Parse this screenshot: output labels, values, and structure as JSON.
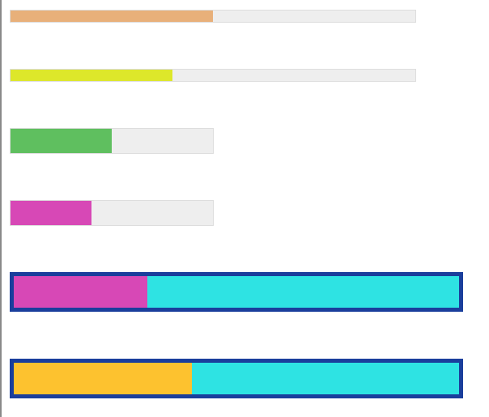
{
  "progress_bars": [
    {
      "value": 50,
      "fill_color": "#e8b07a",
      "track_color": "#eeeeee"
    },
    {
      "value": 40,
      "fill_color": "#dde72a",
      "track_color": "#eeeeee"
    },
    {
      "value": 50,
      "fill_color": "#5fbf5f",
      "track_color": "#eeeeee"
    },
    {
      "value": 40,
      "fill_color": "#d748b6",
      "track_color": "#eeeeee"
    },
    {
      "value": 30,
      "fill_color": "#d748b6",
      "track_color": "#2ee3e3",
      "border_color": "#1a3e9c"
    },
    {
      "value": 40,
      "fill_color": "#fdc22f",
      "track_color": "#2ee3e3",
      "border_color": "#1a3e9c"
    }
  ]
}
